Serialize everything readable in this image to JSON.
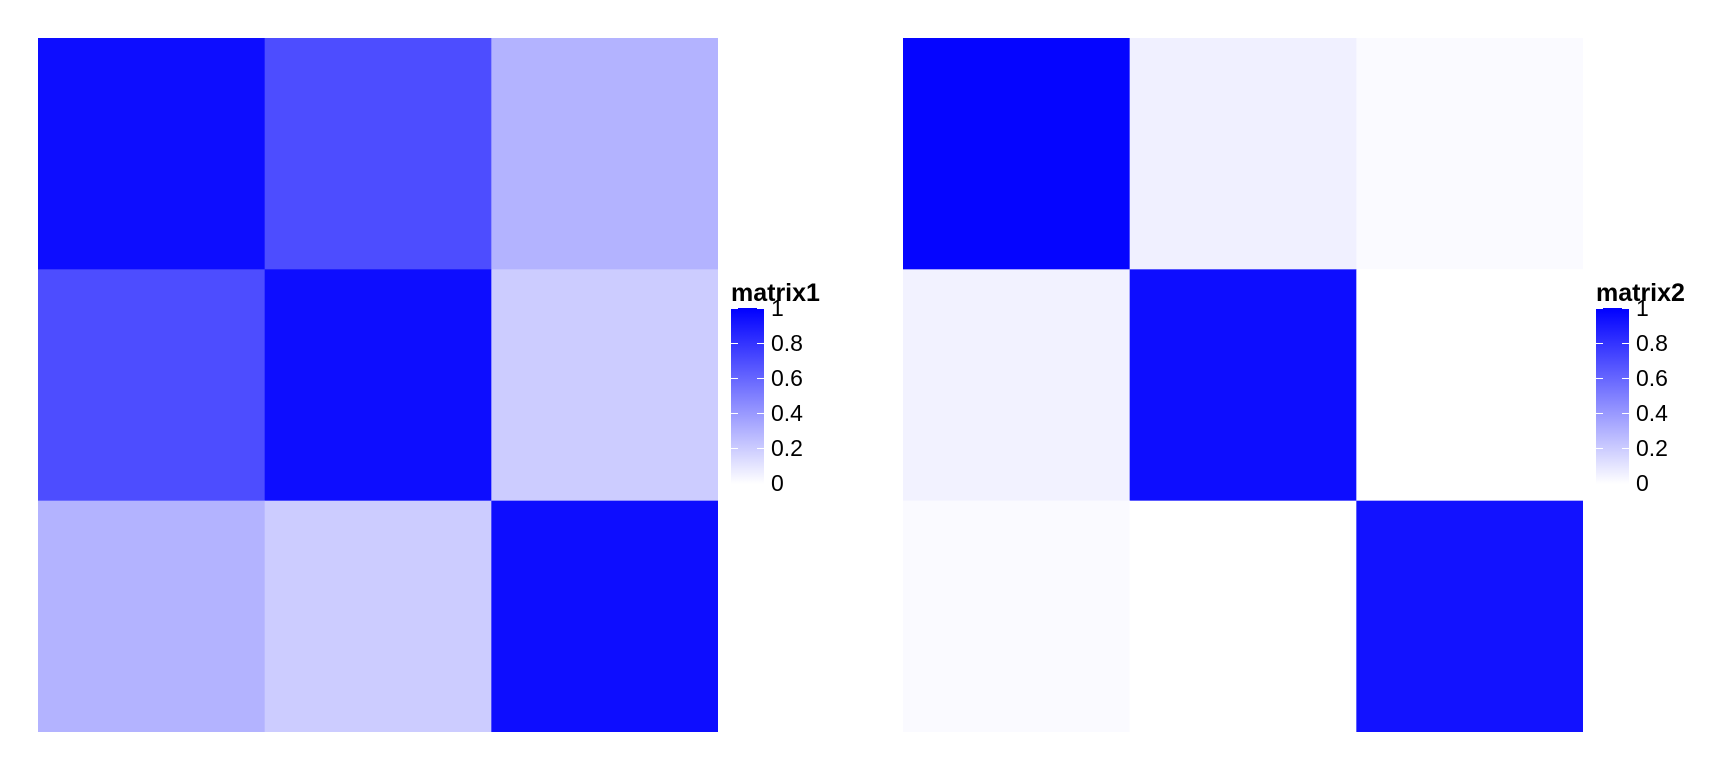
{
  "chart_data": [
    {
      "type": "heatmap",
      "name": "matrix1",
      "legend_title": "matrix1",
      "color_scale": {
        "low": "#ffffff",
        "high": "#0000ff",
        "range": [
          0,
          1
        ]
      },
      "legend_ticks": [
        "0",
        "0.2",
        "0.4",
        "0.6",
        "0.8",
        "1"
      ],
      "blocks": [
        [
          0.95,
          0.7,
          0.3
        ],
        [
          0.7,
          0.95,
          0.2
        ],
        [
          0.3,
          0.2,
          0.95
        ]
      ]
    },
    {
      "type": "heatmap",
      "name": "matrix2",
      "legend_title": "matrix2",
      "color_scale": {
        "low": "#ffffff",
        "high": "#0000ff",
        "range": [
          0,
          1
        ]
      },
      "legend_ticks": [
        "0",
        "0.2",
        "0.4",
        "0.6",
        "0.8",
        "1"
      ],
      "blocks": [
        [
          0.98,
          0.06,
          0.02
        ],
        [
          0.05,
          0.95,
          0.0
        ],
        [
          0.02,
          0.0,
          0.93
        ]
      ]
    }
  ]
}
